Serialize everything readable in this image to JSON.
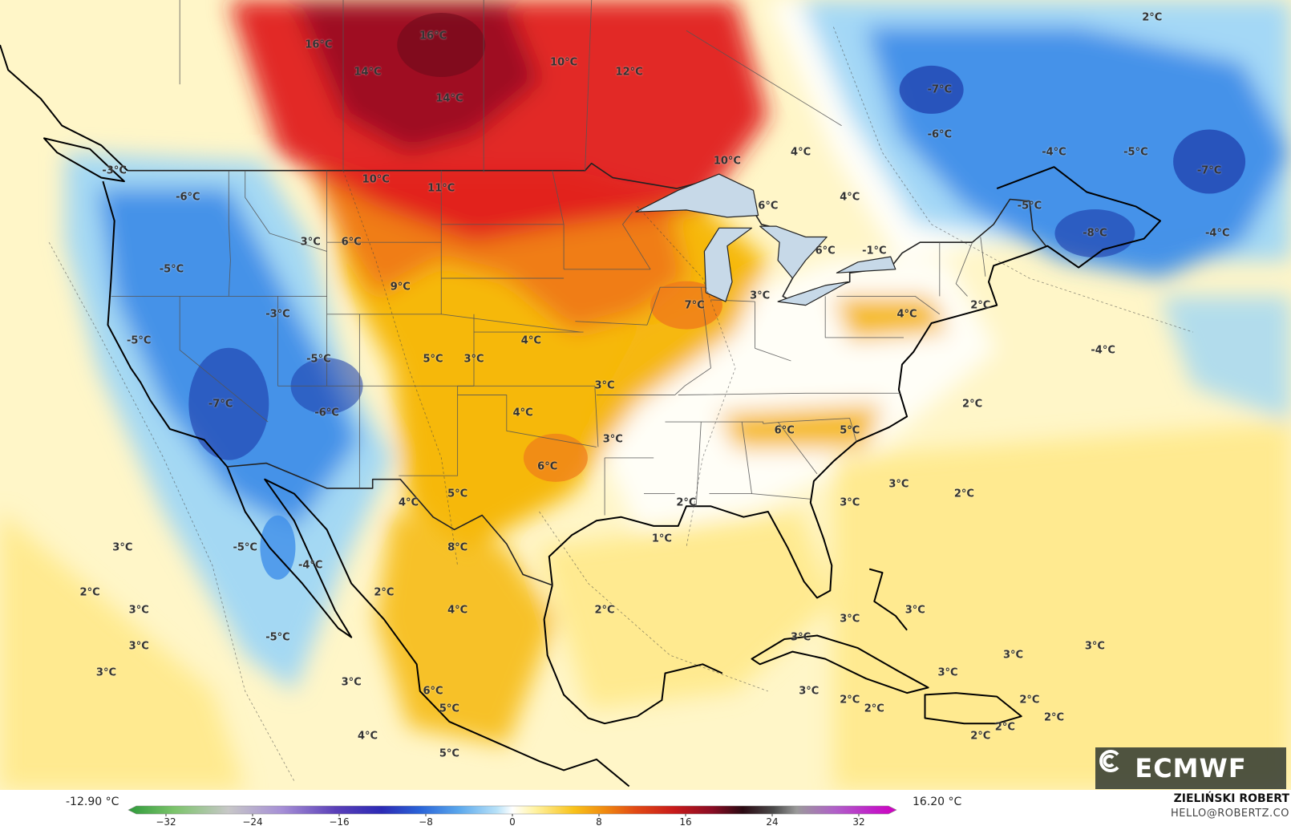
{
  "map": {
    "temperature_labels": [
      {
        "text": "16°C",
        "lat": 56.0,
        "lon": -111.5
      },
      {
        "text": "16°C",
        "lat": 56.5,
        "lon": -104.5
      },
      {
        "text": "14°C",
        "lat": 54.5,
        "lon": -108.5
      },
      {
        "text": "14°C",
        "lat": 53.0,
        "lon": -103.5
      },
      {
        "text": "10°C",
        "lat": 55.0,
        "lon": -96.5
      },
      {
        "text": "12°C",
        "lat": 54.5,
        "lon": -92.5
      },
      {
        "text": "10°C",
        "lat": 48.5,
        "lon": -108.0
      },
      {
        "text": "11°C",
        "lat": 48.0,
        "lon": -104.0
      },
      {
        "text": "10°C",
        "lat": 49.5,
        "lon": -86.5
      },
      {
        "text": "4°C",
        "lat": 50.0,
        "lon": -82.0
      },
      {
        "text": "-7°C",
        "lat": 53.5,
        "lon": -73.5
      },
      {
        "text": "-6°C",
        "lat": 51.0,
        "lon": -73.5
      },
      {
        "text": "-4°C",
        "lat": 50.0,
        "lon": -66.5
      },
      {
        "text": "-5°C",
        "lat": 50.0,
        "lon": -61.5
      },
      {
        "text": "-7°C",
        "lat": 49.0,
        "lon": -57.0
      },
      {
        "text": "-5°C",
        "lat": 47.0,
        "lon": -68.0
      },
      {
        "text": "-8°C",
        "lat": 45.5,
        "lon": -64.0
      },
      {
        "text": "-4°C",
        "lat": 45.5,
        "lon": -56.5
      },
      {
        "text": "2°C",
        "lat": 57.5,
        "lon": -60.5
      },
      {
        "text": "4°C",
        "lat": 47.5,
        "lon": -79.0
      },
      {
        "text": "6°C",
        "lat": 47.0,
        "lon": -84.0
      },
      {
        "text": "6°C",
        "lat": 44.5,
        "lon": -80.5
      },
      {
        "text": "-1°C",
        "lat": 44.5,
        "lon": -77.5
      },
      {
        "text": "-3°C",
        "lat": 49.0,
        "lon": -124.0
      },
      {
        "text": "-6°C",
        "lat": 47.5,
        "lon": -119.5
      },
      {
        "text": "-5°C",
        "lat": 43.5,
        "lon": -120.5
      },
      {
        "text": "3°C",
        "lat": 45.0,
        "lon": -112.0
      },
      {
        "text": "6°C",
        "lat": 45.0,
        "lon": -109.5
      },
      {
        "text": "9°C",
        "lat": 42.5,
        "lon": -106.5
      },
      {
        "text": "-3°C",
        "lat": 41.0,
        "lon": -114.0
      },
      {
        "text": "-5°C",
        "lat": 39.5,
        "lon": -122.5
      },
      {
        "text": "-5°C",
        "lat": 38.5,
        "lon": -111.5
      },
      {
        "text": "-7°C",
        "lat": 36.0,
        "lon": -117.5
      },
      {
        "text": "-6°C",
        "lat": 35.5,
        "lon": -111.0
      },
      {
        "text": "5°C",
        "lat": 38.5,
        "lon": -104.5
      },
      {
        "text": "3°C",
        "lat": 38.5,
        "lon": -102.0
      },
      {
        "text": "4°C",
        "lat": 39.5,
        "lon": -98.5
      },
      {
        "text": "3°C",
        "lat": 37.0,
        "lon": -94.0
      },
      {
        "text": "4°C",
        "lat": 35.5,
        "lon": -99.0
      },
      {
        "text": "7°C",
        "lat": 41.5,
        "lon": -88.5
      },
      {
        "text": "3°C",
        "lat": 42.0,
        "lon": -84.5
      },
      {
        "text": "4°C",
        "lat": 41.0,
        "lon": -75.5
      },
      {
        "text": "2°C",
        "lat": 41.5,
        "lon": -71.0
      },
      {
        "text": "-4°C",
        "lat": 39.0,
        "lon": -63.5
      },
      {
        "text": "2°C",
        "lat": 36.0,
        "lon": -71.5
      },
      {
        "text": "6°C",
        "lat": 34.5,
        "lon": -83.0
      },
      {
        "text": "5°C",
        "lat": 34.5,
        "lon": -79.0
      },
      {
        "text": "3°C",
        "lat": 34.0,
        "lon": -93.5
      },
      {
        "text": "6°C",
        "lat": 32.5,
        "lon": -97.5
      },
      {
        "text": "3°C",
        "lat": 31.5,
        "lon": -76.0
      },
      {
        "text": "2°C",
        "lat": 31.0,
        "lon": -72.0
      },
      {
        "text": "3°C",
        "lat": 30.5,
        "lon": -79.0
      },
      {
        "text": "2°C",
        "lat": 30.5,
        "lon": -89.0
      },
      {
        "text": "5°C",
        "lat": 31.0,
        "lon": -103.0
      },
      {
        "text": "4°C",
        "lat": 30.5,
        "lon": -106.0
      },
      {
        "text": "8°C",
        "lat": 28.0,
        "lon": -103.0
      },
      {
        "text": "1°C",
        "lat": 28.5,
        "lon": -90.5
      },
      {
        "text": "3°C",
        "lat": 28.0,
        "lon": -123.5
      },
      {
        "text": "-5°C",
        "lat": 28.0,
        "lon": -116.0
      },
      {
        "text": "-4°C",
        "lat": 27.0,
        "lon": -112.0
      },
      {
        "text": "2°C",
        "lat": 25.5,
        "lon": -125.5
      },
      {
        "text": "2°C",
        "lat": 25.5,
        "lon": -107.5
      },
      {
        "text": "3°C",
        "lat": 24.5,
        "lon": -122.5
      },
      {
        "text": "4°C",
        "lat": 24.5,
        "lon": -103.0
      },
      {
        "text": "2°C",
        "lat": 24.5,
        "lon": -94.0
      },
      {
        "text": "3°C",
        "lat": 22.5,
        "lon": -122.5
      },
      {
        "text": "-5°C",
        "lat": 23.0,
        "lon": -114.0
      },
      {
        "text": "3°C",
        "lat": 24.0,
        "lon": -79.0
      },
      {
        "text": "3°C",
        "lat": 24.5,
        "lon": -75.0
      },
      {
        "text": "3°C",
        "lat": 23.0,
        "lon": -82.0
      },
      {
        "text": "3°C",
        "lat": 21.0,
        "lon": -124.5
      },
      {
        "text": "3°C",
        "lat": 20.5,
        "lon": -109.5
      },
      {
        "text": "6°C",
        "lat": 20.0,
        "lon": -104.5
      },
      {
        "text": "5°C",
        "lat": 19.0,
        "lon": -103.5
      },
      {
        "text": "3°C",
        "lat": 20.0,
        "lon": -81.5
      },
      {
        "text": "2°C",
        "lat": 19.5,
        "lon": -79.0
      },
      {
        "text": "2°C",
        "lat": 19.0,
        "lon": -77.5
      },
      {
        "text": "3°C",
        "lat": 21.0,
        "lon": -73.0
      },
      {
        "text": "3°C",
        "lat": 22.0,
        "lon": -69.0
      },
      {
        "text": "2°C",
        "lat": 19.5,
        "lon": -68.0
      },
      {
        "text": "2°C",
        "lat": 18.5,
        "lon": -66.5
      },
      {
        "text": "4°C",
        "lat": 17.5,
        "lon": -108.5
      },
      {
        "text": "5°C",
        "lat": 16.5,
        "lon": -103.5
      },
      {
        "text": "2°C",
        "lat": 17.5,
        "lon": -71.0
      },
      {
        "text": "2°C",
        "lat": 18.0,
        "lon": -69.5
      },
      {
        "text": "3°C",
        "lat": 22.5,
        "lon": -64.0
      }
    ]
  },
  "colors": {
    "cold_deep": "#1c3aa8",
    "cold": "#3f8ee8",
    "cool": "#9fd6f5",
    "neutral": "#ffffff",
    "mild": "#ffe98a",
    "warm": "#f5b400",
    "warm_strong": "#f07a1a",
    "hot": "#e02020",
    "very_hot": "#9c0e22"
  },
  "legend": {
    "min_label": "-12.90 °C",
    "max_label": "16.20 °C",
    "tick_labels": [
      "−32",
      "−24",
      "−16",
      "−8",
      "0",
      "8",
      "16",
      "24",
      "32"
    ],
    "range": [
      -32,
      32
    ]
  },
  "credits": {
    "author": "ZIELIŃSKI ROBERT",
    "email": "HELLO@ROBERTZ.CO"
  },
  "logo": {
    "text": "ECMWF",
    "icon": "ecmwf-logo-icon"
  }
}
